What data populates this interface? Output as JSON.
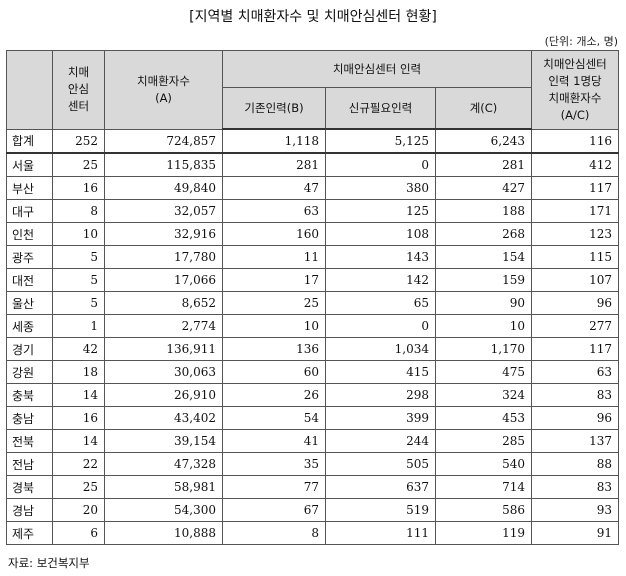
{
  "title": "[지역별 치매환자수 및 치매안심센터 현황]",
  "unit": "(단위: 개소, 명)",
  "headers": {
    "region": "",
    "centers": "치매\n안심\n센터",
    "patients": "치매환자수\n(A)",
    "staff_group": "치매안심센터 인력",
    "existing": "기존인력(B)",
    "new_needed": "신규필요인력",
    "total": "계(C)",
    "per_staff": "치매안심센터\n인력 1명당\n치매환자수\n(A/C)"
  },
  "rows": [
    {
      "region": "합계",
      "centers": "252",
      "patients": "724,857",
      "existing": "1,118",
      "new_needed": "5,125",
      "total": "6,243",
      "per_staff": "116"
    },
    {
      "region": "서울",
      "centers": "25",
      "patients": "115,835",
      "existing": "281",
      "new_needed": "0",
      "total": "281",
      "per_staff": "412"
    },
    {
      "region": "부산",
      "centers": "16",
      "patients": "49,840",
      "existing": "47",
      "new_needed": "380",
      "total": "427",
      "per_staff": "117"
    },
    {
      "region": "대구",
      "centers": "8",
      "patients": "32,057",
      "existing": "63",
      "new_needed": "125",
      "total": "188",
      "per_staff": "171"
    },
    {
      "region": "인천",
      "centers": "10",
      "patients": "32,916",
      "existing": "160",
      "new_needed": "108",
      "total": "268",
      "per_staff": "123"
    },
    {
      "region": "광주",
      "centers": "5",
      "patients": "17,780",
      "existing": "11",
      "new_needed": "143",
      "total": "154",
      "per_staff": "115"
    },
    {
      "region": "대전",
      "centers": "5",
      "patients": "17,066",
      "existing": "17",
      "new_needed": "142",
      "total": "159",
      "per_staff": "107"
    },
    {
      "region": "울산",
      "centers": "5",
      "patients": "8,652",
      "existing": "25",
      "new_needed": "65",
      "total": "90",
      "per_staff": "96"
    },
    {
      "region": "세종",
      "centers": "1",
      "patients": "2,774",
      "existing": "10",
      "new_needed": "0",
      "total": "10",
      "per_staff": "277"
    },
    {
      "region": "경기",
      "centers": "42",
      "patients": "136,911",
      "existing": "136",
      "new_needed": "1,034",
      "total": "1,170",
      "per_staff": "117"
    },
    {
      "region": "강원",
      "centers": "18",
      "patients": "30,063",
      "existing": "60",
      "new_needed": "415",
      "total": "475",
      "per_staff": "63"
    },
    {
      "region": "충북",
      "centers": "14",
      "patients": "26,910",
      "existing": "26",
      "new_needed": "298",
      "total": "324",
      "per_staff": "83"
    },
    {
      "region": "충남",
      "centers": "16",
      "patients": "43,402",
      "existing": "54",
      "new_needed": "399",
      "total": "453",
      "per_staff": "96"
    },
    {
      "region": "전북",
      "centers": "14",
      "patients": "39,154",
      "existing": "41",
      "new_needed": "244",
      "total": "285",
      "per_staff": "137"
    },
    {
      "region": "전남",
      "centers": "22",
      "patients": "47,328",
      "existing": "35",
      "new_needed": "505",
      "total": "540",
      "per_staff": "88"
    },
    {
      "region": "경북",
      "centers": "25",
      "patients": "58,981",
      "existing": "77",
      "new_needed": "637",
      "total": "714",
      "per_staff": "83"
    },
    {
      "region": "경남",
      "centers": "20",
      "patients": "54,300",
      "existing": "67",
      "new_needed": "519",
      "total": "586",
      "per_staff": "93"
    },
    {
      "region": "제주",
      "centers": "6",
      "patients": "10,888",
      "existing": "8",
      "new_needed": "111",
      "total": "119",
      "per_staff": "91"
    }
  ],
  "source": "자료: 보건복지부"
}
